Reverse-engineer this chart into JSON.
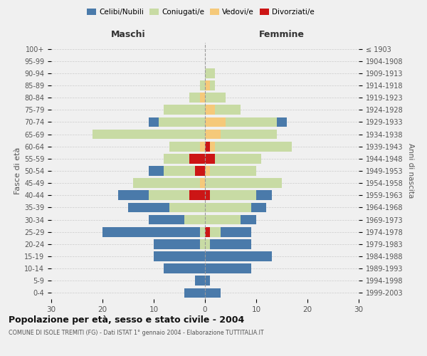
{
  "age_groups": [
    "0-4",
    "5-9",
    "10-14",
    "15-19",
    "20-24",
    "25-29",
    "30-34",
    "35-39",
    "40-44",
    "45-49",
    "50-54",
    "55-59",
    "60-64",
    "65-69",
    "70-74",
    "75-79",
    "80-84",
    "85-89",
    "90-94",
    "95-99",
    "100+"
  ],
  "birth_years": [
    "1999-2003",
    "1994-1998",
    "1989-1993",
    "1984-1988",
    "1979-1983",
    "1974-1978",
    "1969-1973",
    "1964-1968",
    "1959-1963",
    "1954-1958",
    "1949-1953",
    "1944-1948",
    "1939-1943",
    "1934-1938",
    "1929-1933",
    "1924-1928",
    "1919-1923",
    "1914-1918",
    "1909-1913",
    "1904-1908",
    "≤ 1903"
  ],
  "maschi": {
    "celibi": [
      4,
      2,
      8,
      10,
      9,
      19,
      7,
      8,
      6,
      0,
      3,
      0,
      0,
      0,
      2,
      0,
      0,
      0,
      0,
      0,
      0
    ],
    "coniugati": [
      0,
      0,
      0,
      0,
      1,
      1,
      4,
      7,
      8,
      13,
      6,
      5,
      6,
      22,
      9,
      8,
      2,
      1,
      0,
      0,
      0
    ],
    "vedovi": [
      0,
      0,
      0,
      0,
      0,
      0,
      0,
      0,
      0,
      1,
      0,
      0,
      1,
      0,
      0,
      0,
      1,
      0,
      0,
      0,
      0
    ],
    "divorziati": [
      0,
      0,
      0,
      0,
      0,
      0,
      0,
      0,
      3,
      0,
      2,
      3,
      0,
      0,
      0,
      0,
      0,
      0,
      0,
      0,
      0
    ]
  },
  "femmine": {
    "nubili": [
      3,
      1,
      9,
      13,
      8,
      6,
      3,
      3,
      3,
      0,
      0,
      0,
      0,
      0,
      2,
      0,
      0,
      0,
      0,
      0,
      0
    ],
    "coniugate": [
      0,
      0,
      0,
      0,
      1,
      2,
      7,
      9,
      9,
      15,
      9,
      9,
      15,
      11,
      10,
      5,
      4,
      1,
      2,
      0,
      0
    ],
    "vedove": [
      0,
      0,
      0,
      0,
      0,
      0,
      0,
      0,
      0,
      0,
      1,
      0,
      1,
      3,
      4,
      2,
      0,
      1,
      0,
      0,
      0
    ],
    "divorziate": [
      0,
      0,
      0,
      0,
      0,
      1,
      0,
      0,
      1,
      0,
      0,
      2,
      1,
      0,
      0,
      0,
      0,
      0,
      0,
      0,
      0
    ]
  },
  "colors": {
    "celibi_nubili": "#4a7aaa",
    "coniugati": "#c8dba4",
    "vedovi": "#f5c97a",
    "divorziati": "#cc1515"
  },
  "title": "Popolazione per età, sesso e stato civile - 2004",
  "subtitle": "COMUNE DI ISOLE TREMITI (FG) - Dati ISTAT 1° gennaio 2004 - Elaborazione TUTTITALIA.IT",
  "ylabel_left": "Fasce di età",
  "ylabel_right": "Anni di nascita",
  "xlabel_left": "Maschi",
  "xlabel_right": "Femmine",
  "xlim": 30,
  "background_color": "#f0f0f0",
  "grid_color": "#cccccc"
}
